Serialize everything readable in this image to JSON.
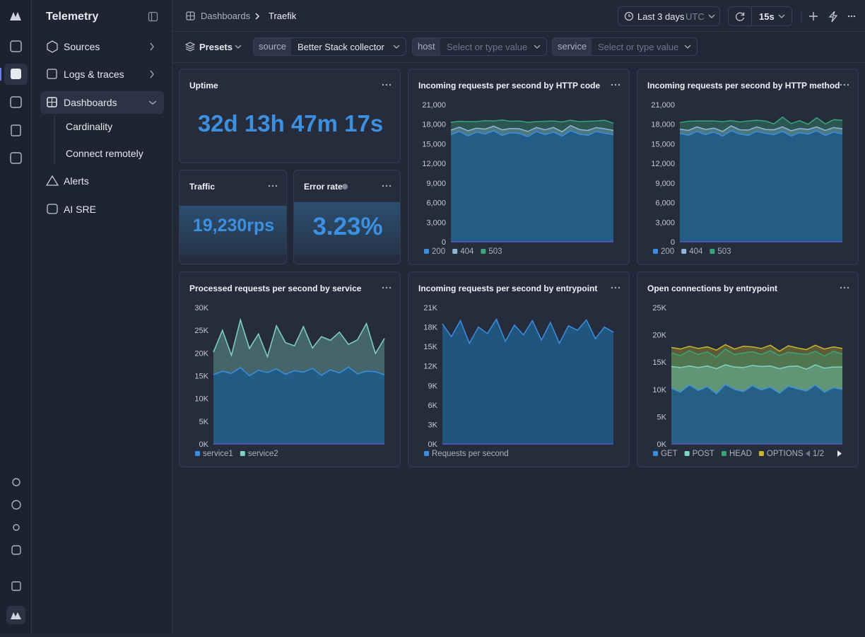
{
  "sidebar": {
    "brand": "Telemetry",
    "nav": [
      "Sources",
      "Logs & traces",
      "Dashboards",
      "Cardinality",
      "Connect remotely",
      "Alerts",
      "AI SRE"
    ]
  },
  "topbar": {
    "breadcrumb": [
      "Dashboards",
      "Traefik"
    ],
    "time_range": "Last 3 days",
    "timezone": "UTC",
    "refresh": "15s"
  },
  "filters": {
    "presets": "Presets",
    "items": [
      {
        "label": "source",
        "value": "Better Stack collector"
      },
      {
        "label": "host",
        "value": "Select or type value"
      },
      {
        "label": "service",
        "value": "Select or type value"
      }
    ]
  },
  "stats": [
    {
      "title": "Uptime",
      "value": "32d 13h 47m 17s"
    },
    {
      "title": "Traffic",
      "value": "19,230rps"
    },
    {
      "title": "Error rate",
      "value": "3.23%"
    }
  ],
  "chart_data": [
    {
      "type": "area",
      "stacked": true,
      "grid": false,
      "title": "Incoming requests per second by HTTP code",
      "ylim": [
        0,
        21000
      ],
      "yticks": [
        0,
        {
          "value": 3000,
          "label": "3,000"
        },
        {
          "value": 6000,
          "label": "6,000"
        },
        {
          "value": 9000,
          "label": "9,000"
        },
        {
          "value": 12000,
          "label": "12,000"
        },
        {
          "value": 15000,
          "label": "15,000"
        },
        {
          "value": 18000,
          "label": "18,000"
        },
        {
          "value": 21000,
          "label": "21,000"
        }
      ],
      "series": [
        {
          "name": "200",
          "color": "#3b8fe0",
          "values": [
            16400,
            16900,
            16200,
            16800,
            16500,
            17000,
            16300,
            16700,
            16600,
            16100,
            16900,
            16400,
            16800,
            16200,
            17000,
            16500,
            16300,
            16900,
            16600,
            16400
          ]
        },
        {
          "name": "404",
          "color": "#8fb6d6",
          "values": [
            700,
            650,
            800,
            600,
            750,
            700,
            850,
            650,
            700,
            800,
            600,
            750,
            700,
            650,
            800,
            700,
            750,
            600,
            700,
            650
          ]
        },
        {
          "name": "503",
          "color": "#3aa57a",
          "values": [
            1200,
            900,
            1400,
            1000,
            1300,
            800,
            1500,
            1100,
            1200,
            1400,
            900,
            1300,
            1000,
            1500,
            800,
            1200,
            1400,
            1000,
            1300,
            1100
          ]
        }
      ]
    },
    {
      "type": "area",
      "stacked": true,
      "grid": false,
      "title": "Incoming requests per second by HTTP method",
      "ylim": [
        0,
        21000
      ],
      "yticks": [
        0,
        {
          "value": 3000,
          "label": "3,000"
        },
        {
          "value": 6000,
          "label": "6,000"
        },
        {
          "value": 9000,
          "label": "9,000"
        },
        {
          "value": 12000,
          "label": "12,000"
        },
        {
          "value": 15000,
          "label": "15,000"
        },
        {
          "value": 18000,
          "label": "18,000"
        },
        {
          "value": 21000,
          "label": "21,000"
        }
      ],
      "series": [
        {
          "name": "200",
          "color": "#3b8fe0",
          "values": [
            16600,
            16300,
            16900,
            16400,
            16800,
            16200,
            17000,
            16500,
            16300,
            16900,
            16600,
            16400,
            16900,
            16200,
            16700,
            16500,
            17000,
            16300,
            16800,
            16500
          ]
        },
        {
          "name": "404",
          "color": "#8fb6d6",
          "values": [
            650,
            750,
            700,
            800,
            600,
            700,
            750,
            650,
            800,
            700,
            600,
            750,
            700,
            800,
            650,
            700,
            600,
            750,
            700,
            800
          ]
        },
        {
          "name": "503",
          "color": "#3aa57a",
          "values": [
            1000,
            1400,
            900,
            1300,
            1100,
            1500,
            800,
            1200,
            1400,
            1000,
            1300,
            900,
            1500,
            1100,
            1200,
            800,
            1400,
            1000,
            1200,
            1300
          ]
        }
      ]
    },
    {
      "type": "area",
      "stacked": true,
      "grid": false,
      "title": "Processed requests per second by service",
      "ylim": [
        0,
        30000
      ],
      "yticks": [
        {
          "value": 0,
          "label": "0K"
        },
        {
          "value": 5000,
          "label": "5K"
        },
        {
          "value": 10000,
          "label": "10K"
        },
        {
          "value": 15000,
          "label": "15K"
        },
        {
          "value": 20000,
          "label": "20K"
        },
        {
          "value": 25000,
          "label": "25K"
        },
        {
          "value": 30000,
          "label": "30K"
        }
      ],
      "series": [
        {
          "name": "service1",
          "color": "#3b8fe0",
          "values": [
            15200,
            16000,
            15500,
            16800,
            15000,
            16200,
            15700,
            16500,
            15300,
            16100,
            15800,
            16600,
            15100,
            16300,
            15600,
            16900,
            15400,
            16000,
            15900,
            15200
          ]
        },
        {
          "name": "service2",
          "color": "#7fd3c4",
          "values": [
            5000,
            9000,
            4000,
            10500,
            6000,
            8000,
            3500,
            9500,
            7000,
            5500,
            10000,
            4500,
            8500,
            6500,
            9000,
            5000,
            7500,
            10500,
            4000,
            8000
          ]
        }
      ]
    },
    {
      "type": "area",
      "stacked": true,
      "grid": false,
      "title": "Incoming requests per second by entrypoint",
      "ylim": [
        0,
        21000
      ],
      "yticks": [
        {
          "value": 0,
          "label": "0K"
        },
        {
          "value": 3000,
          "label": "3K"
        },
        {
          "value": 6000,
          "label": "6K"
        },
        {
          "value": 9000,
          "label": "9K"
        },
        {
          "value": 12000,
          "label": "12K"
        },
        {
          "value": 15000,
          "label": "15K"
        },
        {
          "value": 18000,
          "label": "18K"
        },
        {
          "value": 21000,
          "label": "21K"
        }
      ],
      "series": [
        {
          "name": "Requests per second",
          "color": "#3b8fe0",
          "values": [
            18500,
            16500,
            19000,
            15500,
            18000,
            17000,
            19200,
            15800,
            18300,
            16800,
            19000,
            16000,
            18700,
            15500,
            18200,
            17500,
            19100,
            16200,
            18000,
            17200
          ]
        }
      ]
    },
    {
      "type": "area",
      "stacked": true,
      "grid": false,
      "title": "Open connections by entrypoint",
      "ylim": [
        0,
        25000
      ],
      "legend_page": "1/2",
      "yticks": [
        {
          "value": 0,
          "label": "0K"
        },
        {
          "value": 5000,
          "label": "5K"
        },
        {
          "value": 10000,
          "label": "10K"
        },
        {
          "value": 15000,
          "label": "15K"
        },
        {
          "value": 20000,
          "label": "20K"
        },
        {
          "value": 25000,
          "label": "25K"
        }
      ],
      "series": [
        {
          "name": "GET",
          "color": "#3b8fe0",
          "values": [
            10200,
            9500,
            10800,
            9800,
            10500,
            9200,
            10900,
            10000,
            9600,
            10700,
            9900,
            10400,
            9300,
            10600,
            10100,
            9700,
            10800,
            9500,
            10300,
            10000
          ]
        },
        {
          "name": "POST",
          "color": "#7fd3c4",
          "values": [
            4000,
            4500,
            3500,
            4200,
            3800,
            4600,
            3600,
            4100,
            4400,
            3700,
            4300,
            3900,
            4500,
            3600,
            4200,
            4000,
            3700,
            4400,
            3800,
            4100
          ]
        },
        {
          "name": "HEAD",
          "color": "#3aa57a",
          "values": [
            2500,
            2200,
            2800,
            2400,
            2600,
            2100,
            2900,
            2300,
            2700,
            2500,
            2200,
            2800,
            2400,
            2600,
            2300,
            2700,
            2500,
            2200,
            2900,
            2400
          ]
        },
        {
          "name": "OPTIONS",
          "color": "#c9b52a",
          "values": [
            1000,
            1200,
            800,
            1100,
            900,
            1300,
            800,
            1000,
            1200,
            900,
            1100,
            1000,
            800,
            1200,
            1000,
            900,
            1100,
            1300,
            800,
            1000
          ]
        }
      ]
    }
  ]
}
